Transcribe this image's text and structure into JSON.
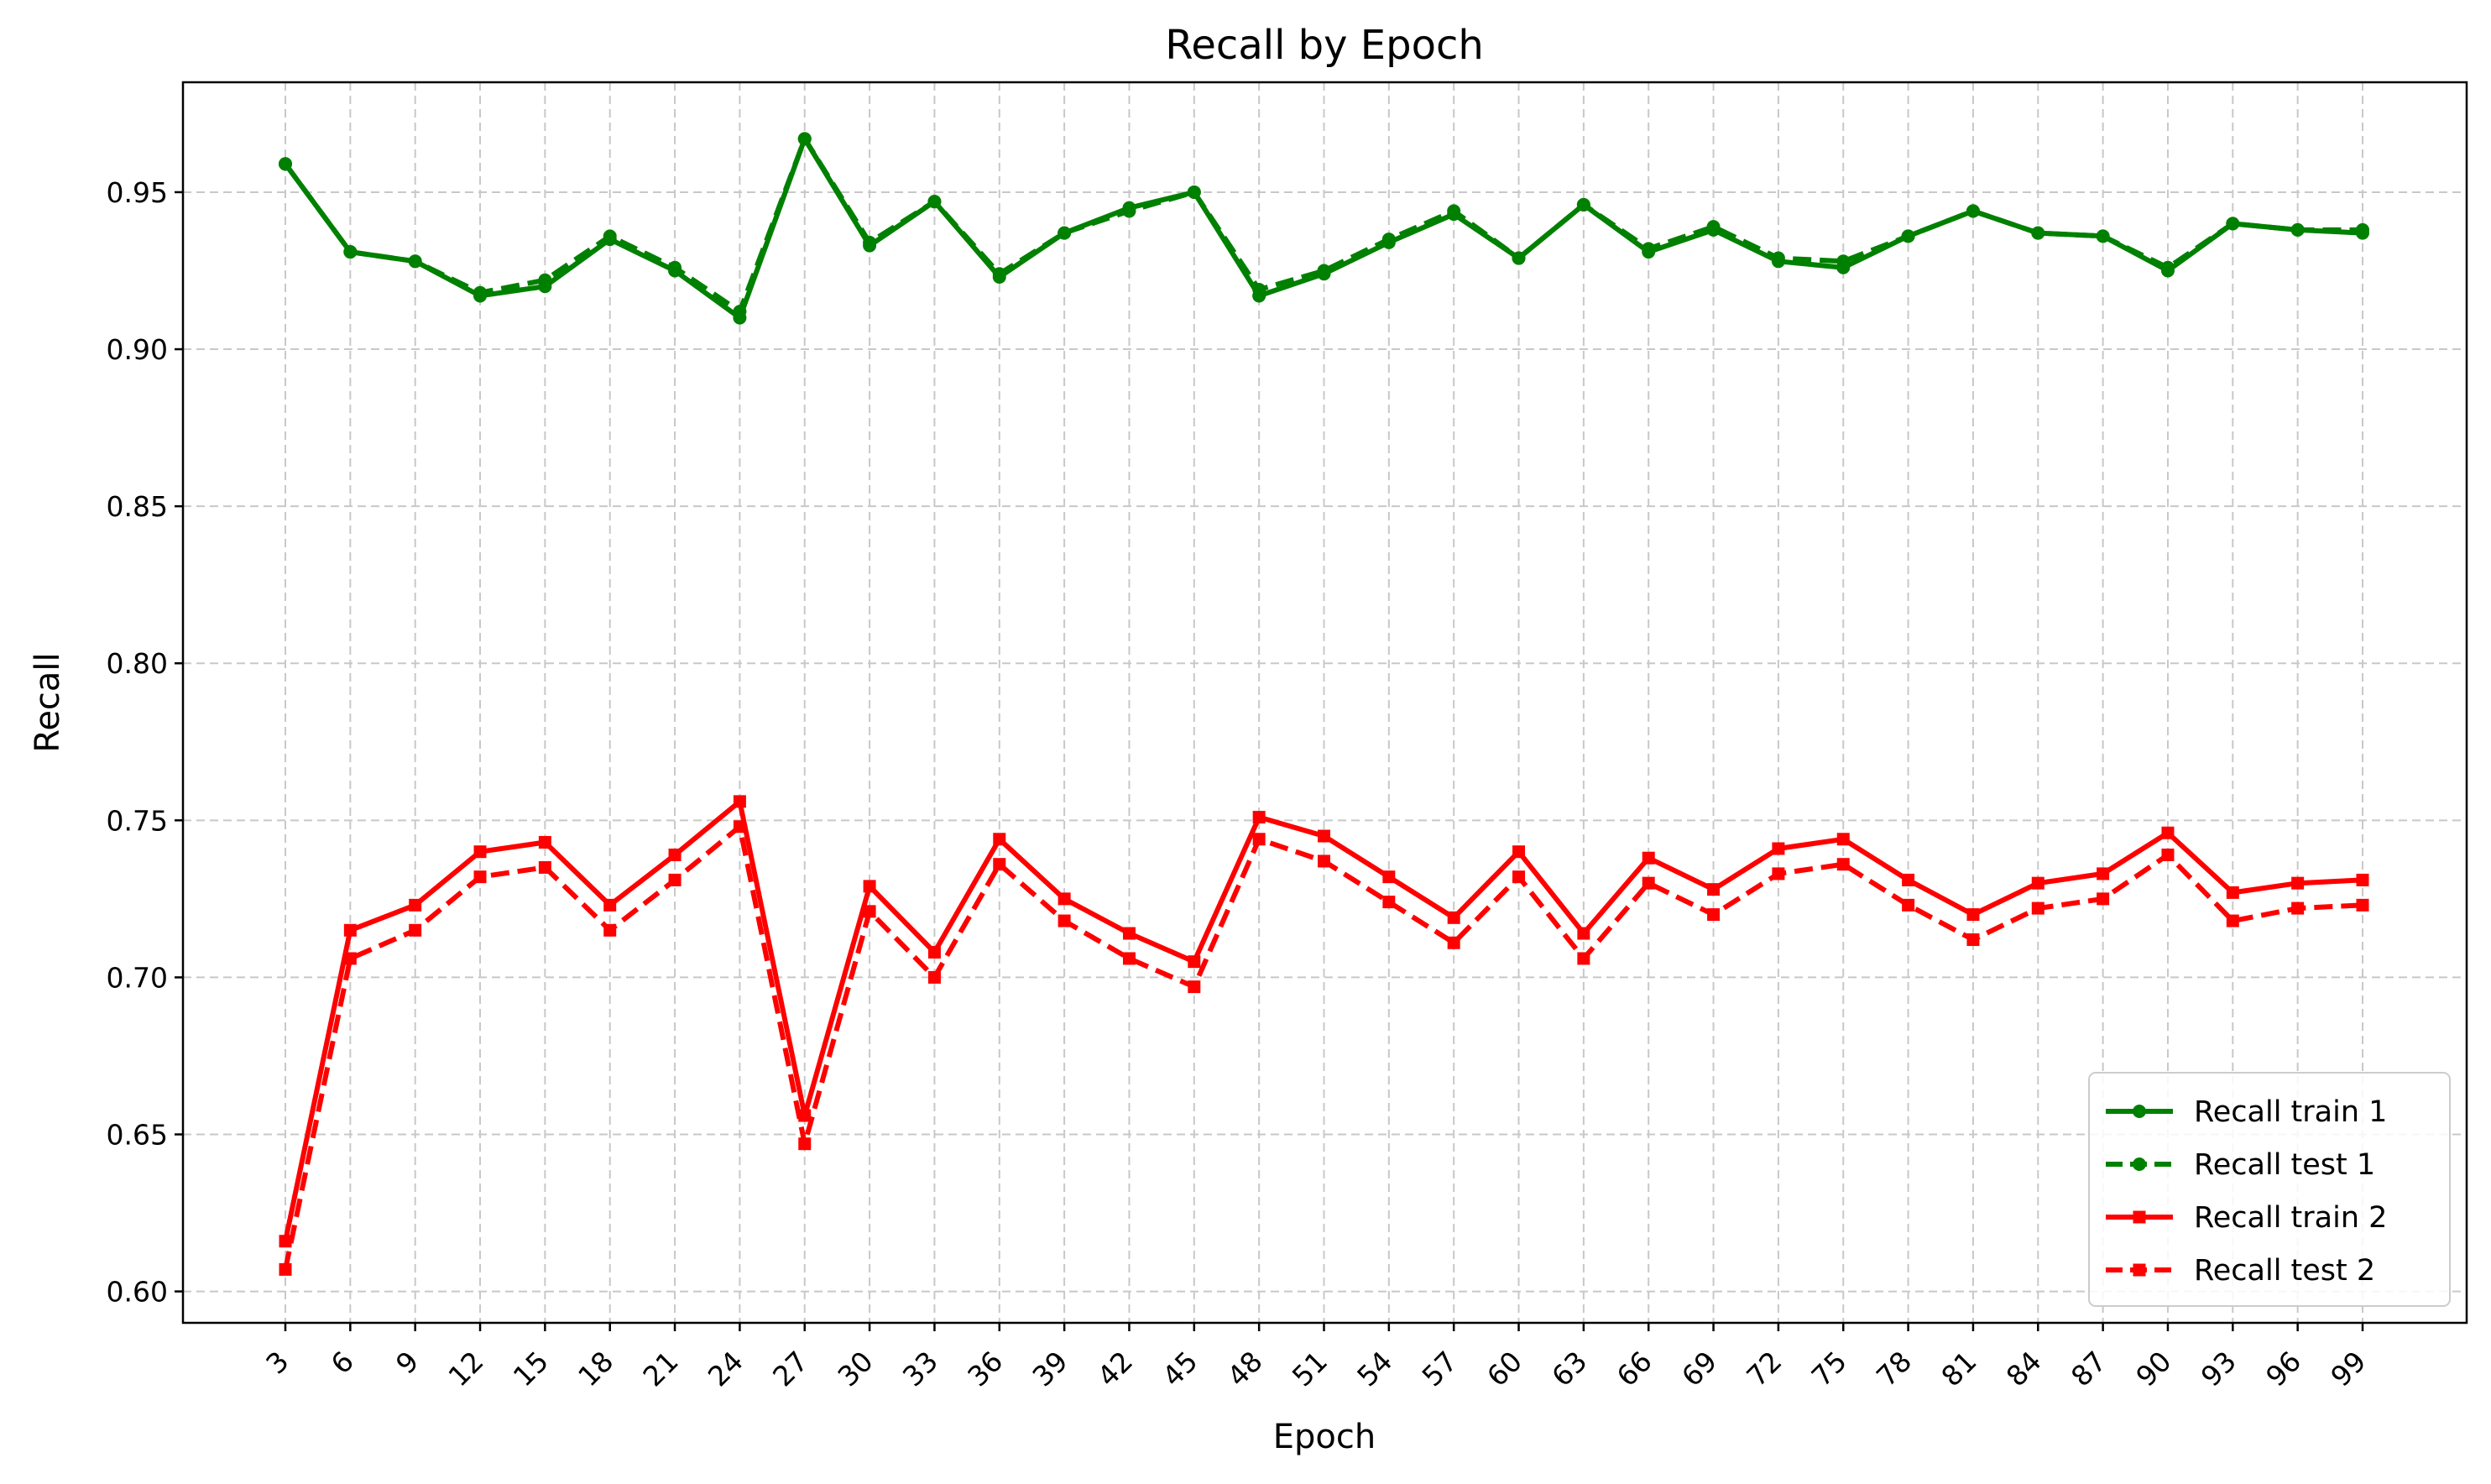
{
  "chart_data": {
    "type": "line",
    "title": "Recall by Epoch",
    "xlabel": "Epoch",
    "ylabel": "Recall",
    "x": [
      3,
      6,
      9,
      12,
      15,
      18,
      21,
      24,
      27,
      30,
      33,
      36,
      39,
      42,
      45,
      48,
      51,
      54,
      57,
      60,
      63,
      66,
      69,
      72,
      75,
      78,
      81,
      84,
      87,
      90,
      93,
      96,
      99
    ],
    "ylim": [
      0.59,
      0.985
    ],
    "yticks": [
      "0.60",
      "0.65",
      "0.70",
      "0.75",
      "0.80",
      "0.85",
      "0.90",
      "0.95"
    ],
    "grid": true,
    "legend_position": "lower right",
    "series": [
      {
        "name": "Recall train 1",
        "color": "#008000",
        "linestyle": "solid",
        "marker": "circle",
        "values": [
          0.959,
          0.931,
          0.928,
          0.917,
          0.92,
          0.935,
          0.925,
          0.91,
          0.967,
          0.933,
          0.947,
          0.923,
          0.937,
          0.945,
          0.95,
          0.917,
          0.924,
          0.934,
          0.943,
          0.929,
          0.946,
          0.931,
          0.938,
          0.928,
          0.926,
          0.936,
          0.944,
          0.937,
          0.936,
          0.925,
          0.94,
          0.938,
          0.937
        ]
      },
      {
        "name": "Recall test 1",
        "color": "#008000",
        "linestyle": "dashed",
        "marker": "circle",
        "values": [
          0.959,
          0.931,
          0.928,
          0.918,
          0.922,
          0.936,
          0.926,
          0.912,
          0.967,
          0.934,
          0.947,
          0.924,
          0.937,
          0.944,
          0.95,
          0.919,
          0.925,
          0.935,
          0.944,
          0.929,
          0.946,
          0.932,
          0.939,
          0.929,
          0.928,
          0.936,
          0.944,
          0.937,
          0.936,
          0.926,
          0.94,
          0.938,
          0.938
        ]
      },
      {
        "name": "Recall train 2",
        "color": "#ff0000",
        "linestyle": "solid",
        "marker": "square",
        "values": [
          0.616,
          0.715,
          0.723,
          0.74,
          0.743,
          0.723,
          0.739,
          0.756,
          0.656,
          0.729,
          0.708,
          0.744,
          0.725,
          0.714,
          0.705,
          0.751,
          0.745,
          0.732,
          0.719,
          0.74,
          0.714,
          0.738,
          0.728,
          0.741,
          0.744,
          0.731,
          0.72,
          0.73,
          0.733,
          0.746,
          0.727,
          0.73,
          0.731
        ]
      },
      {
        "name": "Recall test 2",
        "color": "#ff0000",
        "linestyle": "dashed",
        "marker": "square",
        "values": [
          0.607,
          0.706,
          0.715,
          0.732,
          0.735,
          0.715,
          0.731,
          0.748,
          0.647,
          0.721,
          0.7,
          0.736,
          0.718,
          0.706,
          0.697,
          0.744,
          0.737,
          0.724,
          0.711,
          0.732,
          0.706,
          0.73,
          0.72,
          0.733,
          0.736,
          0.723,
          0.712,
          0.722,
          0.725,
          0.739,
          0.718,
          0.722,
          0.723
        ]
      }
    ]
  }
}
